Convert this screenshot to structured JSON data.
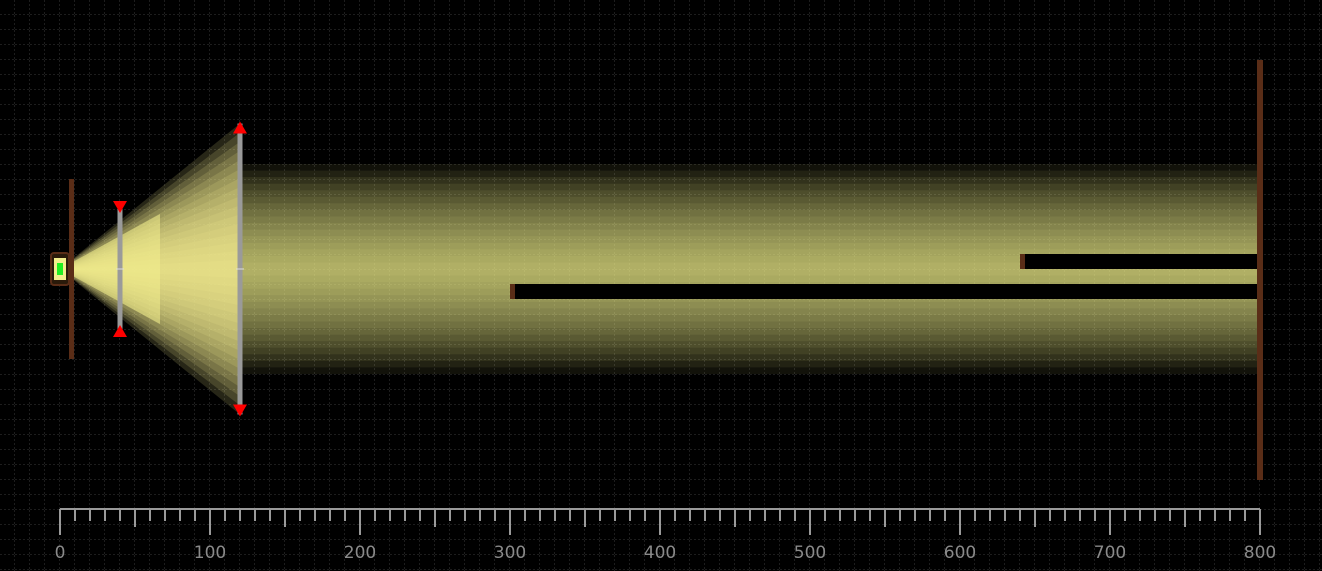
{
  "scene": {
    "ruler": {
      "min": 0,
      "max": 800,
      "major_step": 100,
      "minor_step": 10,
      "tick_labels": [
        "0",
        "100",
        "200",
        "300",
        "400",
        "500",
        "600",
        "700",
        "800"
      ]
    },
    "colors": {
      "background": "#000000",
      "grid": "#3a3a3a",
      "light": "#f2ee8c",
      "wall": "#5a2d17",
      "lens": "#9a9a9a",
      "handle": "#ff0000",
      "source_core": "#22ee22",
      "ruler": "#9a9a9a"
    },
    "source": {
      "x": 0,
      "y": 0
    },
    "backstop_x": 8,
    "aperture_1": {
      "x": 40,
      "half_height": 44
    },
    "aperture_2": {
      "x": 120,
      "half_height": 97
    },
    "obstacles": [
      {
        "x_start": 640,
        "x_end": 800,
        "y_top": -10,
        "y_bottom": 0
      },
      {
        "x_start": 300,
        "x_end": 800,
        "y_top": 10,
        "y_bottom": 20
      }
    ],
    "screen": {
      "x": 800,
      "half_height": 70
    }
  }
}
